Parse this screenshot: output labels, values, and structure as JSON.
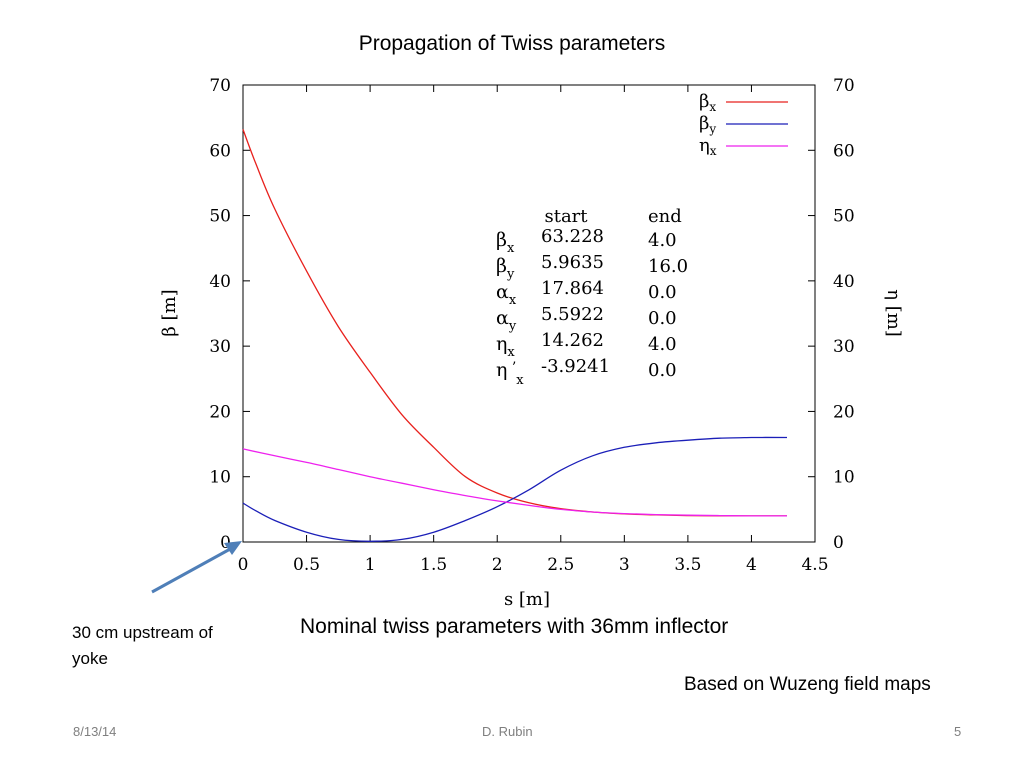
{
  "slide": {
    "title": "Propagation of Twiss parameters",
    "caption": "Nominal twiss parameters with 36mm inflector",
    "note_left": "30 cm upstream of yoke",
    "note_right": "Based on Wuzeng field maps",
    "footer_date": "8/13/14",
    "footer_author": "D. Rubin",
    "footer_page": "5"
  },
  "colors": {
    "beta_x": "#e8211d",
    "beta_y": "#1b1fb8",
    "eta_x": "#ee22ee",
    "arrow": "#4f7fb8"
  },
  "chart_data": {
    "type": "line",
    "xlabel": "s [m]",
    "ylabel": "β [m]",
    "y2label": "η [m]",
    "xlim": [
      0,
      4.5
    ],
    "ylim": [
      0,
      70
    ],
    "y2lim": [
      0,
      70
    ],
    "xticks": [
      "0",
      "0.5",
      "1",
      "1.5",
      "2",
      "2.5",
      "3",
      "3.5",
      "4",
      "4.5"
    ],
    "yticks": [
      "0",
      "10",
      "20",
      "30",
      "40",
      "50",
      "60",
      "70"
    ],
    "y2ticks": [
      "0",
      "10",
      "20",
      "30",
      "40",
      "50",
      "60",
      "70"
    ],
    "legend_position": "top-right",
    "series": [
      {
        "name": "βx",
        "label_main": "β",
        "label_sub": "x",
        "color_key": "beta_x",
        "x": [
          0,
          0.1,
          0.25,
          0.5,
          0.75,
          1.0,
          1.25,
          1.5,
          1.75,
          2.0,
          2.25,
          2.5,
          2.75,
          3.0,
          3.25,
          3.5,
          3.75,
          4.0,
          4.28
        ],
        "y": [
          63.2,
          58.0,
          51.0,
          41.5,
          33.0,
          26.0,
          19.5,
          14.5,
          10.0,
          7.5,
          6.0,
          5.1,
          4.6,
          4.3,
          4.15,
          4.05,
          4.0,
          4.0,
          4.0
        ]
      },
      {
        "name": "βy",
        "label_main": "β",
        "label_sub": "y",
        "color_key": "beta_y",
        "x": [
          0,
          0.1,
          0.25,
          0.5,
          0.75,
          1.0,
          1.25,
          1.5,
          1.75,
          2.0,
          2.25,
          2.5,
          2.75,
          3.0,
          3.25,
          3.5,
          3.75,
          4.0,
          4.28
        ],
        "y": [
          5.96,
          4.8,
          3.3,
          1.5,
          0.4,
          0.1,
          0.4,
          1.5,
          3.3,
          5.4,
          8.0,
          11.0,
          13.2,
          14.5,
          15.2,
          15.6,
          15.9,
          16.0,
          16.0
        ]
      },
      {
        "name": "ηx",
        "label_main": "η",
        "label_sub": "x",
        "color_key": "eta_x",
        "x": [
          0,
          0.25,
          0.5,
          0.75,
          1.0,
          1.25,
          1.5,
          1.75,
          2.0,
          2.25,
          2.5,
          2.75,
          3.0,
          3.25,
          3.5,
          3.75,
          4.0,
          4.28
        ],
        "y": [
          14.26,
          13.2,
          12.2,
          11.1,
          10.0,
          9.0,
          8.0,
          7.1,
          6.3,
          5.6,
          5.0,
          4.6,
          4.35,
          4.2,
          4.1,
          4.05,
          4.0,
          4.0
        ]
      }
    ],
    "table": {
      "col_start": "start",
      "col_end": "end",
      "rows": [
        {
          "main": "β",
          "prime": "",
          "sub": "x",
          "start": "63.228",
          "end": "4.0"
        },
        {
          "main": "β",
          "prime": "",
          "sub": "y",
          "start": "5.9635",
          "end": "16.0"
        },
        {
          "main": "α",
          "prime": "",
          "sub": "x",
          "start": "17.864",
          "end": "0.0"
        },
        {
          "main": "α",
          "prime": "",
          "sub": "y",
          "start": "5.5922",
          "end": "0.0"
        },
        {
          "main": "η",
          "prime": "",
          "sub": "x",
          "start": "14.262",
          "end": "4.0"
        },
        {
          "main": "η",
          "prime": " ’",
          "sub": "x",
          "start": "-3.9241",
          "end": "0.0"
        }
      ]
    }
  }
}
